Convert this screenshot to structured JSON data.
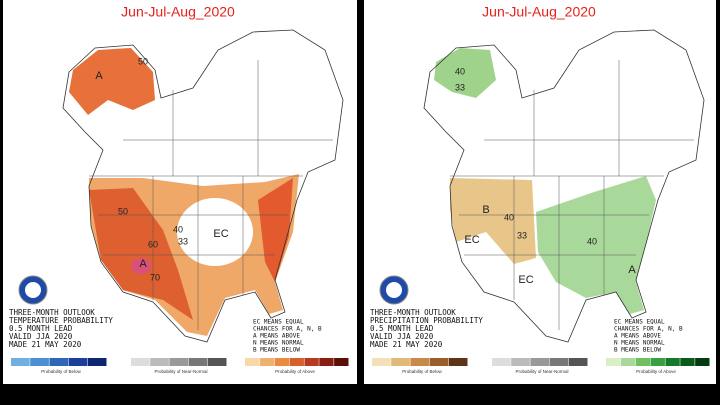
{
  "panels": [
    {
      "title": "Jun-Jul-Aug_2020",
      "map_labels": [
        "A",
        "50",
        "A",
        "70",
        "60",
        "50",
        "40",
        "33",
        "EC"
      ],
      "info": [
        "THREE-MONTH OUTLOOK",
        "TEMPERATURE PROBABILITY",
        "0.5 MONTH LEAD",
        "VALID JJA 2020",
        "MADE 21 MAY 2020"
      ],
      "legend": [
        "EC MEANS EQUAL",
        "CHANCES FOR A, N, B",
        "A MEANS ABOVE",
        "N MEANS NORMAL",
        "B MEANS BELOW"
      ],
      "colorbar_captions": [
        "Probability of Below",
        "Probability of Near-Normal",
        "Probability of Above"
      ]
    },
    {
      "title": "Jun-Jul-Aug_2020",
      "map_labels": [
        "40",
        "33",
        "B",
        "40",
        "33",
        "EC",
        "EC",
        "40",
        "A"
      ],
      "info": [
        "THREE-MONTH OUTLOOK",
        "PRECIPITATION PROBABILITY",
        "0.5 MONTH LEAD",
        "VALID JJA 2020",
        "MADE 21 MAY 2020"
      ],
      "legend": [
        "EC MEANS EQUAL",
        "CHANCES FOR A, N, B",
        "A MEANS ABOVE",
        "N MEANS NORMAL",
        "B MEANS BELOW"
      ],
      "colorbar_captions": [
        "Probability of Below",
        "Probability of Near-Normal",
        "Probability of Above"
      ]
    }
  ]
}
